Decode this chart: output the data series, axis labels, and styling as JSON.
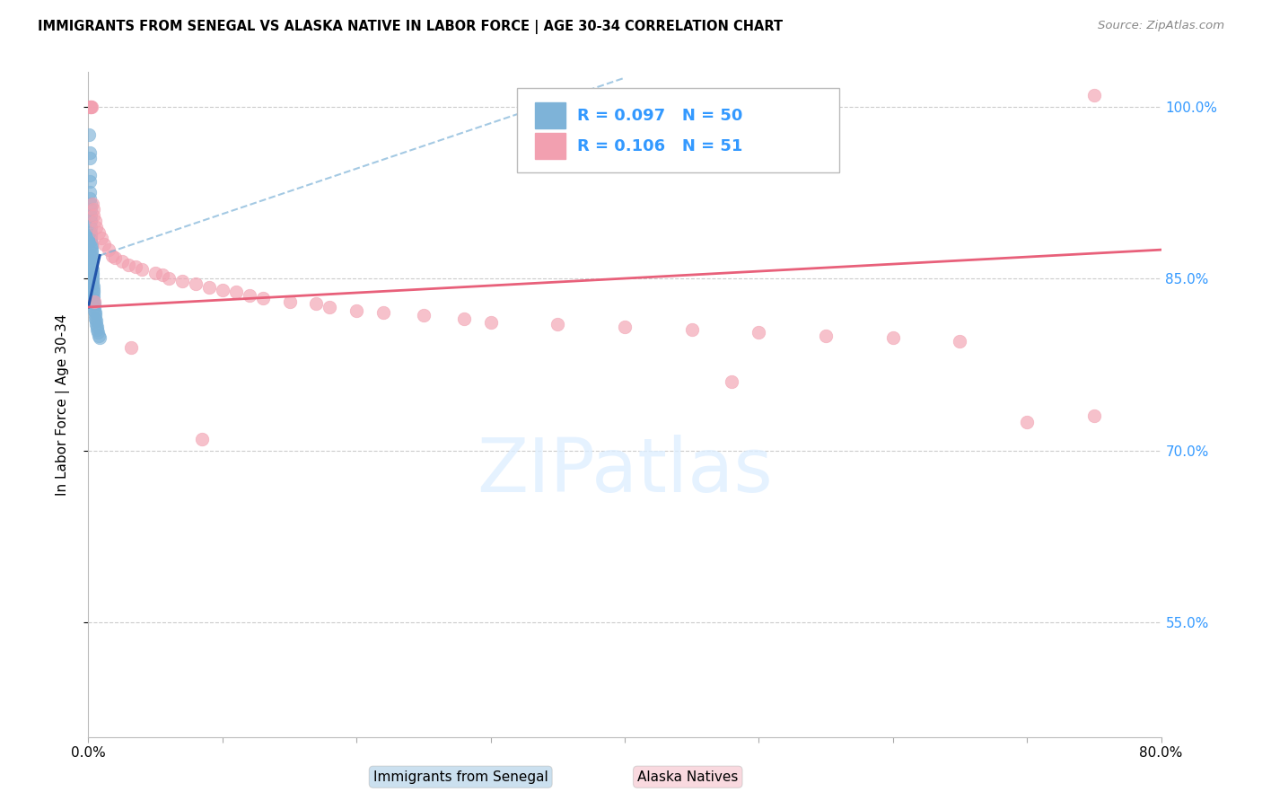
{
  "title": "IMMIGRANTS FROM SENEGAL VS ALASKA NATIVE IN LABOR FORCE | AGE 30-34 CORRELATION CHART",
  "source": "Source: ZipAtlas.com",
  "ylabel": "In Labor Force | Age 30-34",
  "xlim": [
    0.0,
    80.0
  ],
  "ylim": [
    45.0,
    103.0
  ],
  "yticks": [
    55.0,
    70.0,
    85.0,
    100.0
  ],
  "ytick_labels": [
    "55.0%",
    "70.0%",
    "85.0%",
    "100.0%"
  ],
  "legend1_R": "0.097",
  "legend1_N": "50",
  "legend2_R": "0.106",
  "legend2_N": "51",
  "blue_color": "#7EB3D8",
  "pink_color": "#F2A0B0",
  "blue_line_color": "#2255AA",
  "blue_dash_color": "#7EB3D8",
  "pink_line_color": "#E8607A",
  "right_axis_color": "#3399FF",
  "blue_scatter_x": [
    0.05,
    0.08,
    0.1,
    0.1,
    0.12,
    0.12,
    0.13,
    0.14,
    0.15,
    0.15,
    0.16,
    0.17,
    0.18,
    0.19,
    0.2,
    0.2,
    0.21,
    0.22,
    0.22,
    0.23,
    0.24,
    0.25,
    0.25,
    0.26,
    0.27,
    0.28,
    0.29,
    0.3,
    0.3,
    0.32,
    0.33,
    0.35,
    0.35,
    0.37,
    0.38,
    0.4,
    0.4,
    0.42,
    0.44,
    0.45,
    0.48,
    0.5,
    0.52,
    0.55,
    0.6,
    0.62,
    0.65,
    0.7,
    0.8,
    0.85
  ],
  "blue_scatter_y": [
    97.5,
    96.0,
    95.5,
    94.0,
    93.5,
    92.5,
    92.0,
    91.5,
    91.0,
    90.5,
    90.0,
    89.5,
    89.0,
    88.8,
    88.5,
    88.3,
    88.0,
    87.8,
    87.5,
    87.3,
    87.0,
    86.8,
    86.5,
    86.3,
    86.0,
    85.8,
    85.5,
    85.3,
    85.0,
    84.8,
    84.5,
    84.3,
    84.0,
    83.8,
    83.5,
    83.2,
    83.0,
    82.8,
    82.5,
    82.2,
    82.0,
    81.8,
    81.5,
    81.3,
    81.0,
    80.8,
    80.5,
    80.3,
    80.0,
    79.8
  ],
  "pink_scatter_x": [
    0.1,
    0.15,
    0.2,
    0.25,
    0.3,
    0.35,
    0.4,
    0.5,
    0.6,
    0.8,
    1.0,
    1.2,
    1.5,
    1.8,
    2.0,
    2.5,
    3.0,
    3.5,
    4.0,
    5.0,
    5.5,
    6.0,
    7.0,
    8.0,
    9.0,
    10.0,
    11.0,
    12.0,
    13.0,
    15.0,
    17.0,
    18.0,
    20.0,
    22.0,
    25.0,
    28.0,
    30.0,
    35.0,
    40.0,
    45.0,
    50.0,
    55.0,
    60.0,
    65.0,
    70.0,
    75.0,
    0.45,
    3.2,
    8.5,
    48.0,
    75.0
  ],
  "pink_scatter_y": [
    100.0,
    100.0,
    100.0,
    100.0,
    91.5,
    91.0,
    90.5,
    90.0,
    89.5,
    89.0,
    88.5,
    88.0,
    87.5,
    87.0,
    86.8,
    86.5,
    86.2,
    86.0,
    85.8,
    85.5,
    85.3,
    85.0,
    84.8,
    84.5,
    84.2,
    84.0,
    83.8,
    83.5,
    83.3,
    83.0,
    82.8,
    82.5,
    82.2,
    82.0,
    81.8,
    81.5,
    81.2,
    81.0,
    80.8,
    80.5,
    80.3,
    80.0,
    79.8,
    79.5,
    72.5,
    73.0,
    83.0,
    79.0,
    71.0,
    76.0,
    101.0
  ],
  "blue_trend_x0": 0.0,
  "blue_trend_y0": 82.5,
  "blue_trend_x1": 0.85,
  "blue_trend_y1": 87.0,
  "blue_dash_x0": 0.85,
  "blue_dash_y0": 87.0,
  "blue_dash_x1": 40.0,
  "blue_dash_y1": 102.5,
  "pink_trend_x0": 0.0,
  "pink_trend_y0": 82.5,
  "pink_trend_x1": 80.0,
  "pink_trend_y1": 87.5
}
